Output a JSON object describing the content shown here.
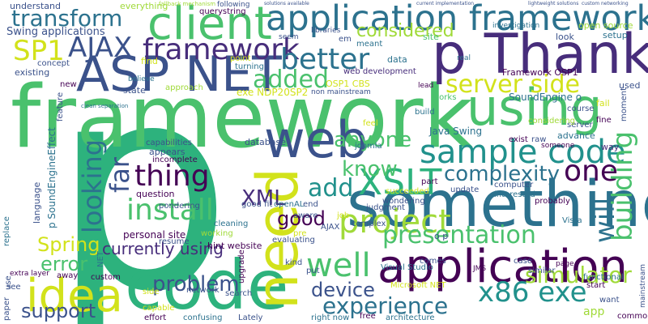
{
  "palette": {
    "yellow": "#d2e21b",
    "yellow_green": "#a0da39",
    "green": "#4ac16d",
    "mint": "#2db27d",
    "teal": "#1fa187",
    "cyan_teal": "#21918c",
    "blue": "#2c728e",
    "deep_blue": "#3b528b",
    "indigo": "#472d7b",
    "purple": "#440154"
  },
  "words": [
    {
      "text": "p",
      "color": "mint"
    },
    {
      "text": "framework",
      "color": "green"
    },
    {
      "text": "code",
      "color": "mint"
    },
    {
      "text": "something",
      "color": "blue"
    },
    {
      "text": "p Thanks",
      "color": "indigo"
    },
    {
      "text": "application framework",
      "color": "blue"
    },
    {
      "text": "ASP NET",
      "color": "deep_blue"
    },
    {
      "text": "client",
      "color": "green"
    },
    {
      "text": "idea",
      "color": "yellow"
    },
    {
      "text": "need",
      "color": "yellow"
    },
    {
      "text": "web",
      "color": "deep_blue"
    },
    {
      "text": "application",
      "color": "purple"
    },
    {
      "text": "using",
      "color": "green"
    },
    {
      "text": "sample code",
      "color": "cyan_teal"
    },
    {
      "text": "project",
      "color": "yellow_green"
    },
    {
      "text": "framework",
      "color": "indigo"
    },
    {
      "text": "AJAX",
      "color": "deep_blue"
    },
    {
      "text": "SP1",
      "color": "yellow"
    },
    {
      "text": "transform",
      "color": "blue"
    },
    {
      "text": "better",
      "color": "blue"
    },
    {
      "text": "server side",
      "color": "yellow"
    },
    {
      "text": "added",
      "color": "green"
    },
    {
      "text": "install",
      "color": "green"
    },
    {
      "text": "thing",
      "color": "purple"
    },
    {
      "text": "well",
      "color": "green"
    },
    {
      "text": "XSLT",
      "color": "mint"
    },
    {
      "text": "anyone",
      "color": "green"
    },
    {
      "text": "know",
      "color": "green"
    },
    {
      "text": "add",
      "color": "cyan_teal"
    },
    {
      "text": "one",
      "color": "purple"
    },
    {
      "text": "complexity",
      "color": "blue"
    },
    {
      "text": "looking",
      "color": "blue"
    },
    {
      "text": "far",
      "color": "deep_blue"
    },
    {
      "text": "will",
      "color": "blue"
    },
    {
      "text": "building",
      "color": "green"
    },
    {
      "text": "presentation",
      "color": "green"
    },
    {
      "text": "x86 exe",
      "color": "cyan_teal"
    },
    {
      "text": "simulator",
      "color": "yellow_green"
    },
    {
      "text": "experience",
      "color": "blue"
    },
    {
      "text": "device",
      "color": "deep_blue"
    },
    {
      "text": "problem",
      "color": "deep_blue"
    },
    {
      "text": "error",
      "color": "green"
    },
    {
      "text": "support",
      "color": "deep_blue"
    },
    {
      "text": "Spring",
      "color": "yellow"
    },
    {
      "text": "currently using",
      "color": "indigo"
    },
    {
      "text": "XML",
      "color": "indigo"
    },
    {
      "text": "good",
      "color": "purple"
    },
    {
      "text": "considered",
      "color": "yellow_green"
    },
    {
      "text": "Swing applications",
      "color": "deep_blue"
    },
    {
      "text": "understand",
      "color": "deep_blue"
    },
    {
      "text": "everything",
      "color": "yellow_green"
    },
    {
      "text": "querystring",
      "color": "purple"
    },
    {
      "text": "following",
      "color": "deep_blue"
    },
    {
      "text": "fallback mechanism",
      "color": "yellow_green"
    },
    {
      "text": "solutions available",
      "color": "deep_blue"
    },
    {
      "text": "current implementation",
      "color": "deep_blue"
    },
    {
      "text": "lightweight solutions",
      "color": "deep_blue"
    },
    {
      "text": "custom networking",
      "color": "deep_blue"
    },
    {
      "text": "open source",
      "color": "yellow_green"
    },
    {
      "text": "look",
      "color": "deep_blue"
    },
    {
      "text": "setup",
      "color": "blue"
    },
    {
      "text": "investigation",
      "color": "blue"
    },
    {
      "text": "libraries",
      "color": "deep_blue"
    },
    {
      "text": "site",
      "color": "green"
    },
    {
      "text": "seem",
      "color": "deep_blue"
    },
    {
      "text": "em",
      "color": "deep_blue"
    },
    {
      "text": "meant",
      "color": "blue"
    },
    {
      "text": "data",
      "color": "blue"
    },
    {
      "text": "real",
      "color": "blue"
    },
    {
      "text": "Framework OSP1",
      "color": "purple"
    },
    {
      "text": "web development",
      "color": "indigo"
    },
    {
      "text": "OSP1 CBS",
      "color": "yellow"
    },
    {
      "text": "exe NDP20SP2",
      "color": "yellow"
    },
    {
      "text": "non mainstream",
      "color": "deep_blue"
    },
    {
      "text": "lead",
      "color": "purple"
    },
    {
      "text": "works",
      "color": "green"
    },
    {
      "text": "SoundEngine o",
      "color": "blue"
    },
    {
      "text": "used",
      "color": "deep_blue"
    },
    {
      "text": "fail",
      "color": "yellow"
    },
    {
      "text": "course",
      "color": "deep_blue"
    },
    {
      "text": "server",
      "color": "deep_blue"
    },
    {
      "text": "fine",
      "color": "purple"
    },
    {
      "text": "build",
      "color": "blue"
    },
    {
      "text": "feel",
      "color": "yellow"
    },
    {
      "text": "Java Swing",
      "color": "blue"
    },
    {
      "text": "considering",
      "color": "yellow_green"
    },
    {
      "text": "exist",
      "color": "purple"
    },
    {
      "text": "raw",
      "color": "deep_blue"
    },
    {
      "text": "advance",
      "color": "blue"
    },
    {
      "text": "way",
      "color": "indigo"
    },
    {
      "text": "someone",
      "color": "purple"
    },
    {
      "text": "part",
      "color": "purple"
    },
    {
      "text": "succeeded",
      "color": "yellow"
    },
    {
      "text": "end",
      "color": "deep_blue"
    },
    {
      "text": "wondering",
      "color": "deep_blue"
    },
    {
      "text": "computer",
      "color": "deep_blue"
    },
    {
      "text": "interested",
      "color": "blue"
    },
    {
      "text": "update",
      "color": "deep_blue"
    },
    {
      "text": "probably",
      "color": "purple"
    },
    {
      "text": "Vista",
      "color": "blue"
    },
    {
      "text": "case",
      "color": "deep_blue"
    },
    {
      "text": "page",
      "color": "purple"
    },
    {
      "text": "similar",
      "color": "deep_blue"
    },
    {
      "text": "functional",
      "color": "blue"
    },
    {
      "text": "start",
      "color": "purple"
    },
    {
      "text": "want",
      "color": "deep_blue"
    },
    {
      "text": "common",
      "color": "purple"
    },
    {
      "text": "app",
      "color": "yellow_green"
    },
    {
      "text": "mainstream",
      "color": "deep_blue"
    },
    {
      "text": "JMS",
      "color": "purple"
    },
    {
      "text": "comes",
      "color": "deep_blue"
    },
    {
      "text": "o p",
      "color": "deep_blue"
    },
    {
      "text": "Microsoft NET",
      "color": "yellow"
    },
    {
      "text": "free",
      "color": "purple"
    },
    {
      "text": "architecture",
      "color": "blue"
    },
    {
      "text": "right now",
      "color": "blue"
    },
    {
      "text": "Visual Studio",
      "color": "blue"
    },
    {
      "text": "kind",
      "color": "deep_blue"
    },
    {
      "text": "put",
      "color": "deep_blue"
    },
    {
      "text": "evaluating",
      "color": "deep_blue"
    },
    {
      "text": "AJAX",
      "color": "deep_blue"
    },
    {
      "text": "pre",
      "color": "yellow"
    },
    {
      "text": "aware",
      "color": "deep_blue"
    },
    {
      "text": "complex",
      "color": "deep_blue"
    },
    {
      "text": "job",
      "color": "yellow"
    },
    {
      "text": "judgment",
      "color": "deep_blue"
    },
    {
      "text": "openAL",
      "color": "blue"
    },
    {
      "text": "joomla",
      "color": "blue"
    },
    {
      "text": "good fit",
      "color": "deep_blue"
    },
    {
      "text": "database",
      "color": "deep_blue"
    },
    {
      "text": "hint website",
      "color": "purple"
    },
    {
      "text": "cleaning",
      "color": "blue"
    },
    {
      "text": "working",
      "color": "yellow_green"
    },
    {
      "text": "upgrade",
      "color": "purple"
    },
    {
      "text": "Lately",
      "color": "deep_blue"
    },
    {
      "text": "confusing",
      "color": "blue"
    },
    {
      "text": "search",
      "color": "deep_blue"
    },
    {
      "text": "network",
      "color": "deep_blue"
    },
    {
      "text": "effort",
      "color": "purple"
    },
    {
      "text": "capable",
      "color": "yellow"
    },
    {
      "text": "side",
      "color": "yellow"
    },
    {
      "text": "custom",
      "color": "purple"
    },
    {
      "text": "NET",
      "color": "blue"
    },
    {
      "text": "away",
      "color": "purple"
    },
    {
      "text": "see",
      "color": "deep_blue"
    },
    {
      "text": "use",
      "color": "deep_blue"
    },
    {
      "text": "paper",
      "color": "deep_blue"
    },
    {
      "text": "replace",
      "color": "blue"
    },
    {
      "text": "language",
      "color": "deep_blue"
    },
    {
      "text": "p SoundEngineEffect",
      "color": "blue"
    },
    {
      "text": "personal site",
      "color": "purple"
    },
    {
      "text": "resume",
      "color": "deep_blue"
    },
    {
      "text": "question",
      "color": "purple"
    },
    {
      "text": "appears",
      "color": "deep_blue"
    },
    {
      "text": "incomplete",
      "color": "purple"
    },
    {
      "text": "capabilities",
      "color": "deep_blue"
    },
    {
      "text": "pondering",
      "color": "deep_blue"
    },
    {
      "text": "state",
      "color": "deep_blue"
    },
    {
      "text": "approach",
      "color": "yellow_green"
    },
    {
      "text": "believe",
      "color": "blue"
    },
    {
      "text": "find",
      "color": "yellow"
    },
    {
      "text": "point",
      "color": "yellow"
    },
    {
      "text": "turning",
      "color": "blue"
    },
    {
      "text": "concept",
      "color": "deep_blue"
    },
    {
      "text": "existing",
      "color": "deep_blue"
    },
    {
      "text": "new",
      "color": "purple"
    },
    {
      "text": "feature",
      "color": "deep_blue"
    },
    {
      "text": "clean separation",
      "color": "blue"
    },
    {
      "text": "extra layer",
      "color": "purple"
    },
    {
      "text": "moment",
      "color": "deep_blue"
    }
  ]
}
